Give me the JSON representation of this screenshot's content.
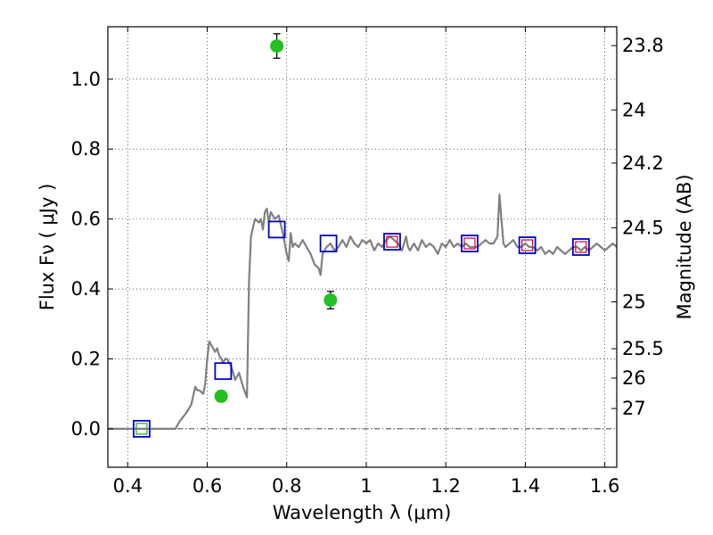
{
  "chart_data": {
    "type": "line",
    "xlabel": "Wavelength  λ (μm)",
    "ylabel": "Flux  Fν  ( μJy )",
    "y2label": "Magnitude (AB)",
    "xlim": [
      0.35,
      1.63
    ],
    "ylim": [
      -0.11,
      1.15
    ],
    "grid": true,
    "x_ticks": [
      0.4,
      0.6,
      0.8,
      1.0,
      1.2,
      1.4,
      1.6
    ],
    "x_tick_labels": [
      "0.4",
      "0.6",
      "0.8",
      "1",
      "1.2",
      "1.4",
      "1.6"
    ],
    "y_ticks": [
      0.0,
      0.2,
      0.4,
      0.6,
      0.8,
      1.0
    ],
    "y_tick_labels": [
      "0.0",
      "0.2",
      "0.4",
      "0.6",
      "0.8",
      "1.0"
    ],
    "y2_ticks": [
      {
        "flux": 1.096,
        "label": "23.8"
      },
      {
        "flux": 0.912,
        "label": "24"
      },
      {
        "flux": 0.76,
        "label": "24.2"
      },
      {
        "flux": 0.575,
        "label": "24.5"
      },
      {
        "flux": 0.363,
        "label": "25"
      },
      {
        "flux": 0.229,
        "label": "25.5"
      },
      {
        "flux": 0.145,
        "label": "26"
      },
      {
        "flux": 0.058,
        "label": "27"
      }
    ],
    "zero_line": 0.0,
    "colors": {
      "model": "#808080",
      "observed": "#22c022",
      "model_photometry_blue": "#0000cc",
      "model_photometry_red": "#cc0033",
      "model_photometry_green": "#22aa22",
      "errorbar": "#000000"
    },
    "series": [
      {
        "kind": "spectrum",
        "x": [
          0.35,
          0.52,
          0.53,
          0.55,
          0.56,
          0.57,
          0.575,
          0.58,
          0.59,
          0.595,
          0.6,
          0.605,
          0.61,
          0.62,
          0.625,
          0.63,
          0.64,
          0.645,
          0.65,
          0.655,
          0.66,
          0.67,
          0.68,
          0.69,
          0.7,
          0.705,
          0.71,
          0.72,
          0.73,
          0.735,
          0.74,
          0.745,
          0.75,
          0.755,
          0.76,
          0.77,
          0.78,
          0.79,
          0.8,
          0.805,
          0.81,
          0.815,
          0.82,
          0.83,
          0.84,
          0.85,
          0.86,
          0.87,
          0.88,
          0.885,
          0.89,
          0.9,
          0.91,
          0.92,
          0.93,
          0.94,
          0.95,
          0.96,
          0.97,
          0.98,
          0.99,
          1.0,
          1.01,
          1.02,
          1.03,
          1.04,
          1.05,
          1.06,
          1.07,
          1.08,
          1.09,
          1.1,
          1.105,
          1.11,
          1.12,
          1.13,
          1.14,
          1.15,
          1.16,
          1.17,
          1.18,
          1.19,
          1.2,
          1.21,
          1.22,
          1.23,
          1.24,
          1.25,
          1.26,
          1.27,
          1.28,
          1.29,
          1.3,
          1.31,
          1.32,
          1.33,
          1.335,
          1.34,
          1.345,
          1.35,
          1.36,
          1.37,
          1.38,
          1.39,
          1.4,
          1.41,
          1.42,
          1.43,
          1.44,
          1.45,
          1.46,
          1.47,
          1.48,
          1.49,
          1.5,
          1.51,
          1.52,
          1.53,
          1.54,
          1.55,
          1.56,
          1.57,
          1.58,
          1.59,
          1.6,
          1.61,
          1.62,
          1.63
        ],
        "y": [
          0.0,
          0.0,
          0.02,
          0.05,
          0.07,
          0.12,
          0.11,
          0.11,
          0.1,
          0.13,
          0.2,
          0.25,
          0.24,
          0.22,
          0.23,
          0.21,
          0.19,
          0.2,
          0.2,
          0.19,
          0.18,
          0.14,
          0.16,
          0.12,
          0.09,
          0.42,
          0.55,
          0.6,
          0.59,
          0.6,
          0.57,
          0.62,
          0.63,
          0.59,
          0.62,
          0.6,
          0.61,
          0.56,
          0.5,
          0.48,
          0.56,
          0.52,
          0.53,
          0.52,
          0.54,
          0.52,
          0.5,
          0.47,
          0.46,
          0.44,
          0.5,
          0.52,
          0.53,
          0.51,
          0.52,
          0.54,
          0.52,
          0.55,
          0.53,
          0.52,
          0.54,
          0.53,
          0.54,
          0.51,
          0.53,
          0.52,
          0.54,
          0.55,
          0.54,
          0.53,
          0.51,
          0.55,
          0.52,
          0.51,
          0.53,
          0.51,
          0.54,
          0.52,
          0.53,
          0.52,
          0.5,
          0.53,
          0.52,
          0.54,
          0.52,
          0.53,
          0.52,
          0.53,
          0.52,
          0.52,
          0.52,
          0.53,
          0.54,
          0.53,
          0.53,
          0.55,
          0.67,
          0.6,
          0.53,
          0.52,
          0.53,
          0.54,
          0.52,
          0.52,
          0.53,
          0.52,
          0.52,
          0.51,
          0.52,
          0.5,
          0.51,
          0.5,
          0.52,
          0.51,
          0.5,
          0.51,
          0.52,
          0.52,
          0.51,
          0.52,
          0.51,
          0.52,
          0.53,
          0.52,
          0.51,
          0.52,
          0.53,
          0.52
        ]
      },
      {
        "kind": "model_photometry",
        "x": [
          0.435,
          0.64,
          0.775,
          0.905,
          1.065,
          1.26,
          1.405,
          1.54
        ],
        "y": [
          0.0,
          0.165,
          0.57,
          0.53,
          0.535,
          0.53,
          0.525,
          0.52
        ],
        "inner": [
          "green",
          null,
          null,
          null,
          "red",
          "red",
          "red",
          "red"
        ]
      },
      {
        "kind": "observed",
        "x": [
          0.635,
          0.775,
          0.91
        ],
        "y": [
          0.093,
          1.095,
          0.368
        ],
        "yerr": [
          0.015,
          0.035,
          0.025
        ]
      }
    ]
  }
}
